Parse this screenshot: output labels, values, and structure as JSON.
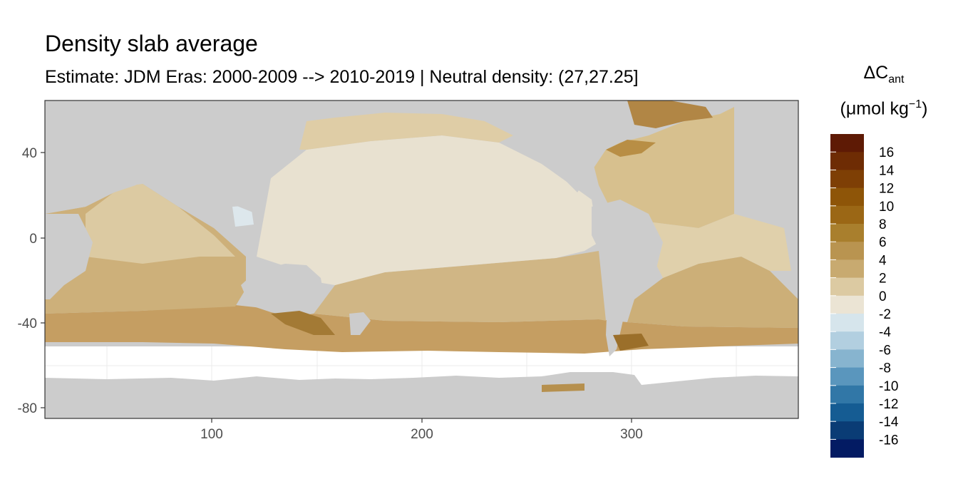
{
  "title": "Density slab average",
  "subtitle": "Estimate: JDM Eras: 2000-2009 --> 2010-2019 | Neutral density: (27,27.25]",
  "legend": {
    "title_main": "ΔC",
    "title_sub": "ant",
    "unit_prefix": "(μmol kg",
    "unit_sup": "−1",
    "unit_suffix": ")",
    "breaks": [
      16,
      14,
      12,
      10,
      8,
      6,
      4,
      2,
      0,
      -2,
      -4,
      -6,
      -8,
      -10,
      -12,
      -14,
      -16
    ],
    "labels": [
      "16",
      "14",
      "12",
      "10",
      "8",
      "6",
      "4",
      "2",
      "0",
      "-2",
      "-4",
      "-6",
      "-8",
      "-10",
      "-12",
      "-14",
      "-16"
    ],
    "colors": [
      "#5e1a05",
      "#6e2c04",
      "#7e3f05",
      "#8e5508",
      "#9b6715",
      "#a97f2d",
      "#b99450",
      "#c8aa70",
      "#dccaa2",
      "#ebe4d4",
      "#d6e5ec",
      "#b2cfe0",
      "#87b4cf",
      "#5a96bd",
      "#3177a7",
      "#155c93",
      "#0a3c75",
      "#031b63"
    ]
  },
  "chart_data": {
    "type": "heatmap",
    "title": "Density slab average",
    "subtitle": "Estimate: JDM Eras: 2000-2009 --> 2010-2019 | Neutral density: (27,27.25]",
    "xlabel": "",
    "ylabel": "",
    "xlim": [
      20,
      380
    ],
    "ylim": [
      -85,
      65
    ],
    "x_ticks": [
      100,
      200,
      300
    ],
    "y_ticks": [
      40,
      0,
      -40,
      -80
    ],
    "x_tick_labels": [
      "100",
      "200",
      "300"
    ],
    "y_tick_labels": [
      "40",
      "0",
      "-40",
      "-80"
    ],
    "grid": true,
    "legend_placement": "right",
    "value_ranges": {
      "land_gray": "#cccccc",
      "ocean_no_data": "#ffffff",
      "north_pacific": "0 to 2",
      "tropical_pacific": "0 to 2",
      "south_pacific": "2 to 4",
      "southern_ocean_band": "4 to 8",
      "north_atlantic": "2 to 8",
      "south_atlantic": "4 to 6",
      "indian_ocean_south": "2 to 6",
      "western_tropical_pacific": "-2 to 0"
    }
  }
}
